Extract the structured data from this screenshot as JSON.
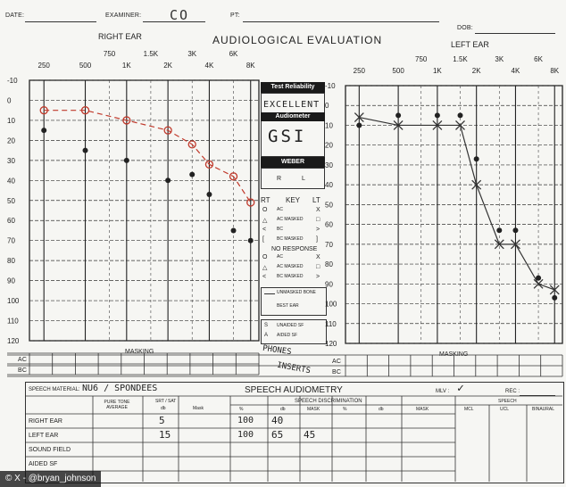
{
  "header": {
    "date_label": "DATE:",
    "examiner_label": "EXAMINER:",
    "examiner_value": "CO",
    "pt_label": "PT:",
    "dob_label": "DOB:",
    "title": "AUDIOLOGICAL EVALUATION",
    "right_ear": "RIGHT EAR",
    "left_ear": "LEFT EAR"
  },
  "chart_data": [
    {
      "type": "scatter",
      "title": "RIGHT EAR",
      "x_top": [
        "250",
        "500",
        "1K",
        "2K",
        "4K",
        "8K"
      ],
      "x_bottom": [
        "750",
        "1.5K",
        "3K",
        "6K"
      ],
      "y_ticks": [
        "-10",
        "0",
        "10",
        "20",
        "30",
        "40",
        "50",
        "60",
        "70",
        "80",
        "90",
        "100",
        "110",
        "120"
      ],
      "ylim": [
        -10,
        120
      ],
      "series": [
        {
          "name": "AC",
          "marker": "O",
          "color": "#c0392b",
          "x": [
            250,
            500,
            1000,
            2000,
            3000,
            4000,
            6000,
            8000
          ],
          "values": [
            5,
            5,
            10,
            15,
            22,
            32,
            38,
            51
          ]
        },
        {
          "name": "BC",
          "marker": "dot",
          "color": "#222",
          "x": [
            250,
            500,
            1000,
            2000,
            3000,
            4000,
            6000,
            8000
          ],
          "values": [
            15,
            25,
            30,
            40,
            37,
            47,
            65,
            70
          ]
        }
      ]
    },
    {
      "type": "scatter",
      "title": "LEFT EAR",
      "x_top": [
        "250",
        "500",
        "1K",
        "2K",
        "4K",
        "8K"
      ],
      "x_bottom": [
        "750",
        "1.5K",
        "3K",
        "6K"
      ],
      "y_ticks": [
        "-10",
        "0",
        "10",
        "20",
        "30",
        "40",
        "50",
        "60",
        "70",
        "80",
        "90",
        "100",
        "110",
        "120"
      ],
      "ylim": [
        -10,
        120
      ],
      "series": [
        {
          "name": "AC",
          "marker": "X",
          "color": "#333",
          "x": [
            250,
            500,
            1000,
            1500,
            2000,
            3000,
            4000,
            6000,
            8000
          ],
          "values": [
            6,
            10,
            10,
            10,
            40,
            70,
            70,
            90,
            93
          ]
        },
        {
          "name": "BC",
          "marker": "dot",
          "color": "#222",
          "x": [
            250,
            500,
            1000,
            1500,
            2000,
            3000,
            4000,
            6000,
            8000
          ],
          "values": [
            10,
            5,
            5,
            5,
            27,
            63,
            63,
            87,
            97
          ]
        }
      ]
    }
  ],
  "key": {
    "test_reliability": "Test Reliability",
    "reliability_value": "EXCELLENT",
    "audiometer": "Audiometer",
    "audiometer_value": "GSI",
    "weber": "WEBER",
    "weber_r": "R",
    "weber_l": "L",
    "rt": "RT",
    "key_label": "KEY",
    "lt": "LT",
    "rows": [
      {
        "r": "O",
        "desc": "AC",
        "l": "X"
      },
      {
        "r": "△",
        "desc": "AC MASKED",
        "l": "□"
      },
      {
        "r": "<",
        "desc": "BC",
        "l": ">"
      },
      {
        "r": "[",
        "desc": "BC MASKED",
        "l": "]"
      }
    ],
    "no_response": "NO RESPONSE",
    "nr_rows": [
      {
        "r": "O",
        "desc": "AC",
        "l": "X"
      },
      {
        "r": "△",
        "desc": "AC MASKED",
        "l": "□"
      },
      {
        "r": "<",
        "desc": "BC MASKED",
        "l": ">"
      }
    ],
    "unmasked_bone": "UNMASKED BONE",
    "best_ear": "BEST EAR",
    "unaided_s": "S",
    "unaided_sf": "UNAIDED SF",
    "aided_a": "A",
    "aided_sf": "AIDED SF",
    "phones": "PHONES",
    "inserts": "INSERTS"
  },
  "masking": {
    "label": "MASKING",
    "ac": "AC",
    "bc": "BC"
  },
  "speech": {
    "material_label": "SPEECH MATERIAL:",
    "material_value": "NU6 / SPONDEES",
    "title": "SPEECH AUDIOMETRY",
    "mlv_label": "MLV :",
    "mlv_value": "✓",
    "rec_label": "REC :",
    "col_pta": "PURE TONE AVERAGE",
    "col_srt": "SRT / SAT",
    "col_db": "db",
    "col_mask": "Mask",
    "disc_title": "SPEECH DISCRIMINATION",
    "disc_cols": [
      "%",
      "db",
      "MASK",
      "%",
      "db",
      "MASK"
    ],
    "speech_title": "SPEECH",
    "speech_cols": [
      "MCL",
      "UCL",
      "BINAURAL"
    ],
    "rows": [
      {
        "label": "RIGHT EAR",
        "srt": "5",
        "disc_pct": "100",
        "disc_db": "40",
        "disc_mask": ""
      },
      {
        "label": "LEFT EAR",
        "srt": "15",
        "disc_pct": "100",
        "disc_db": "65",
        "disc_mask": "45"
      },
      {
        "label": "SOUND FIELD",
        "srt": "",
        "disc_pct": "",
        "disc_db": "",
        "disc_mask": ""
      },
      {
        "label": "AIDED SF",
        "srt": "",
        "disc_pct": "",
        "disc_db": "",
        "disc_mask": ""
      }
    ]
  },
  "watermark": "© X - @bryan_johnson"
}
